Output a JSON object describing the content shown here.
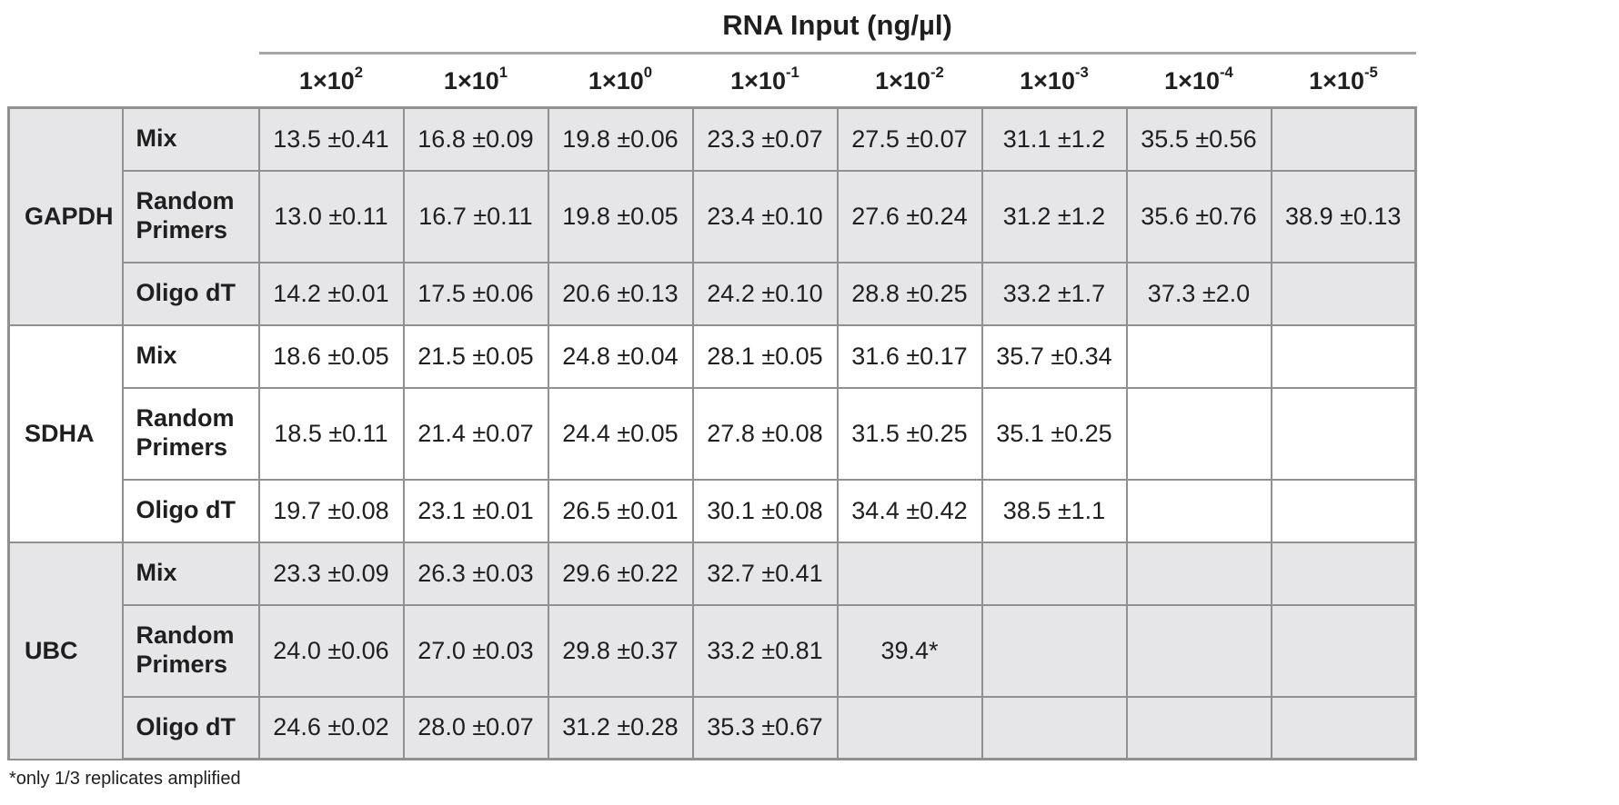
{
  "chart_data": {
    "type": "table",
    "title": "RNA Input (ng/µl)",
    "col_headers": [
      {
        "base": "1×10",
        "exp": "2"
      },
      {
        "base": "1×10",
        "exp": "1"
      },
      {
        "base": "1×10",
        "exp": "0"
      },
      {
        "base": "1×10",
        "exp": "-1"
      },
      {
        "base": "1×10",
        "exp": "-2"
      },
      {
        "base": "1×10",
        "exp": "-3"
      },
      {
        "base": "1×10",
        "exp": "-4"
      },
      {
        "base": "1×10",
        "exp": "-5"
      }
    ],
    "groups": [
      {
        "gene": "GAPDH",
        "shaded": true,
        "rows": [
          {
            "primer": "Mix",
            "values": [
              "13.5 ±0.41",
              "16.8 ±0.09",
              "19.8 ±0.06",
              "23.3 ±0.07",
              "27.5 ±0.07",
              "31.1 ±1.2",
              "35.5 ±0.56",
              ""
            ]
          },
          {
            "primer": "Random Primers",
            "values": [
              "13.0 ±0.11",
              "16.7 ±0.11",
              "19.8 ±0.05",
              "23.4 ±0.10",
              "27.6 ±0.24",
              "31.2 ±1.2",
              "35.6 ±0.76",
              "38.9 ±0.13"
            ]
          },
          {
            "primer": "Oligo dT",
            "values": [
              "14.2 ±0.01",
              "17.5 ±0.06",
              "20.6 ±0.13",
              "24.2 ±0.10",
              "28.8 ±0.25",
              "33.2 ±1.7",
              "37.3 ±2.0",
              ""
            ]
          }
        ]
      },
      {
        "gene": "SDHA",
        "shaded": false,
        "rows": [
          {
            "primer": "Mix",
            "values": [
              "18.6 ±0.05",
              "21.5 ±0.05",
              "24.8 ±0.04",
              "28.1 ±0.05",
              "31.6 ±0.17",
              "35.7 ±0.34",
              "",
              ""
            ]
          },
          {
            "primer": "Random Primers",
            "values": [
              "18.5 ±0.11",
              "21.4 ±0.07",
              "24.4 ±0.05",
              "27.8 ±0.08",
              "31.5 ±0.25",
              "35.1 ±0.25",
              "",
              ""
            ]
          },
          {
            "primer": "Oligo dT",
            "values": [
              "19.7 ±0.08",
              "23.1 ±0.01",
              "26.5 ±0.01",
              "30.1 ±0.08",
              "34.4 ±0.42",
              "38.5 ±1.1",
              "",
              ""
            ]
          }
        ]
      },
      {
        "gene": "UBC",
        "shaded": true,
        "rows": [
          {
            "primer": "Mix",
            "values": [
              "23.3 ±0.09",
              "26.3 ±0.03",
              "29.6 ±0.22",
              "32.7 ±0.41",
              "",
              "",
              "",
              ""
            ]
          },
          {
            "primer": "Random Primers",
            "values": [
              "24.0 ±0.06",
              "27.0 ±0.03",
              "29.8 ±0.37",
              "33.2 ±0.81",
              "39.4*",
              "",
              "",
              ""
            ]
          },
          {
            "primer": "Oligo dT",
            "values": [
              "24.6 ±0.02",
              "28.0 ±0.07",
              "31.2 ±0.28",
              "35.3 ±0.67",
              "",
              "",
              "",
              ""
            ]
          }
        ]
      }
    ],
    "footnote": "*only 1/3 replicates amplified"
  },
  "colors": {
    "shaded_row_bg": "#e6e6e8",
    "cell_border": "#909090",
    "header_rule": "#a6a6a6",
    "text": "#1f1f1f"
  }
}
